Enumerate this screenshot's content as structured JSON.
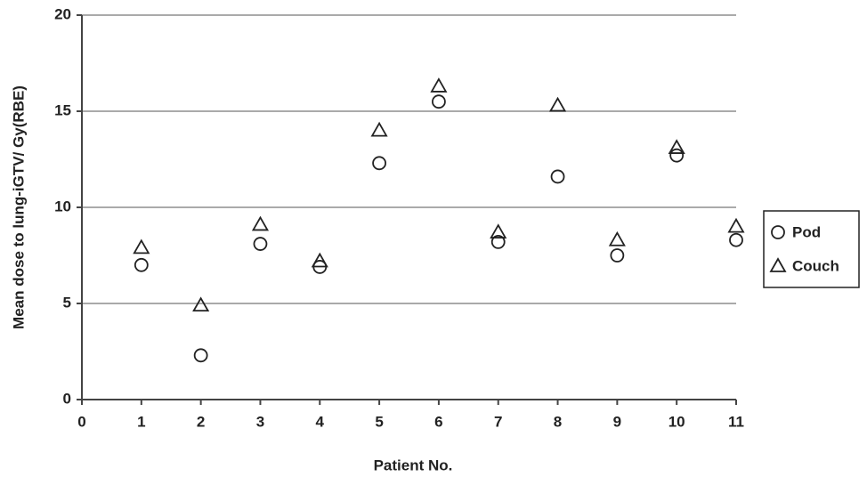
{
  "chart_data": {
    "type": "scatter",
    "x_label": "Patient No.",
    "y_label": "Mean dose to lung-iGTV/ Gy(RBE)",
    "x": [
      1,
      2,
      3,
      4,
      5,
      6,
      7,
      8,
      9,
      10,
      11
    ],
    "series": [
      {
        "name": "Pod",
        "color": "#222222",
        "marker": "circle",
        "values": [
          7.0,
          2.3,
          8.1,
          6.9,
          12.3,
          15.5,
          8.2,
          11.6,
          7.5,
          12.7,
          8.3
        ]
      },
      {
        "name": "Couch",
        "color": "#222222",
        "marker": "triangle",
        "values": [
          7.9,
          4.9,
          9.1,
          7.2,
          14.0,
          16.3,
          8.7,
          15.3,
          8.3,
          13.1,
          9.0
        ]
      }
    ],
    "xlim": [
      0,
      11
    ],
    "xticks": [
      0,
      1,
      2,
      3,
      4,
      5,
      6,
      7,
      8,
      9,
      10,
      11
    ],
    "ylim": [
      0,
      20
    ],
    "yticks": [
      0,
      5,
      10,
      15,
      20
    ],
    "grid": true,
    "legend": "right"
  }
}
